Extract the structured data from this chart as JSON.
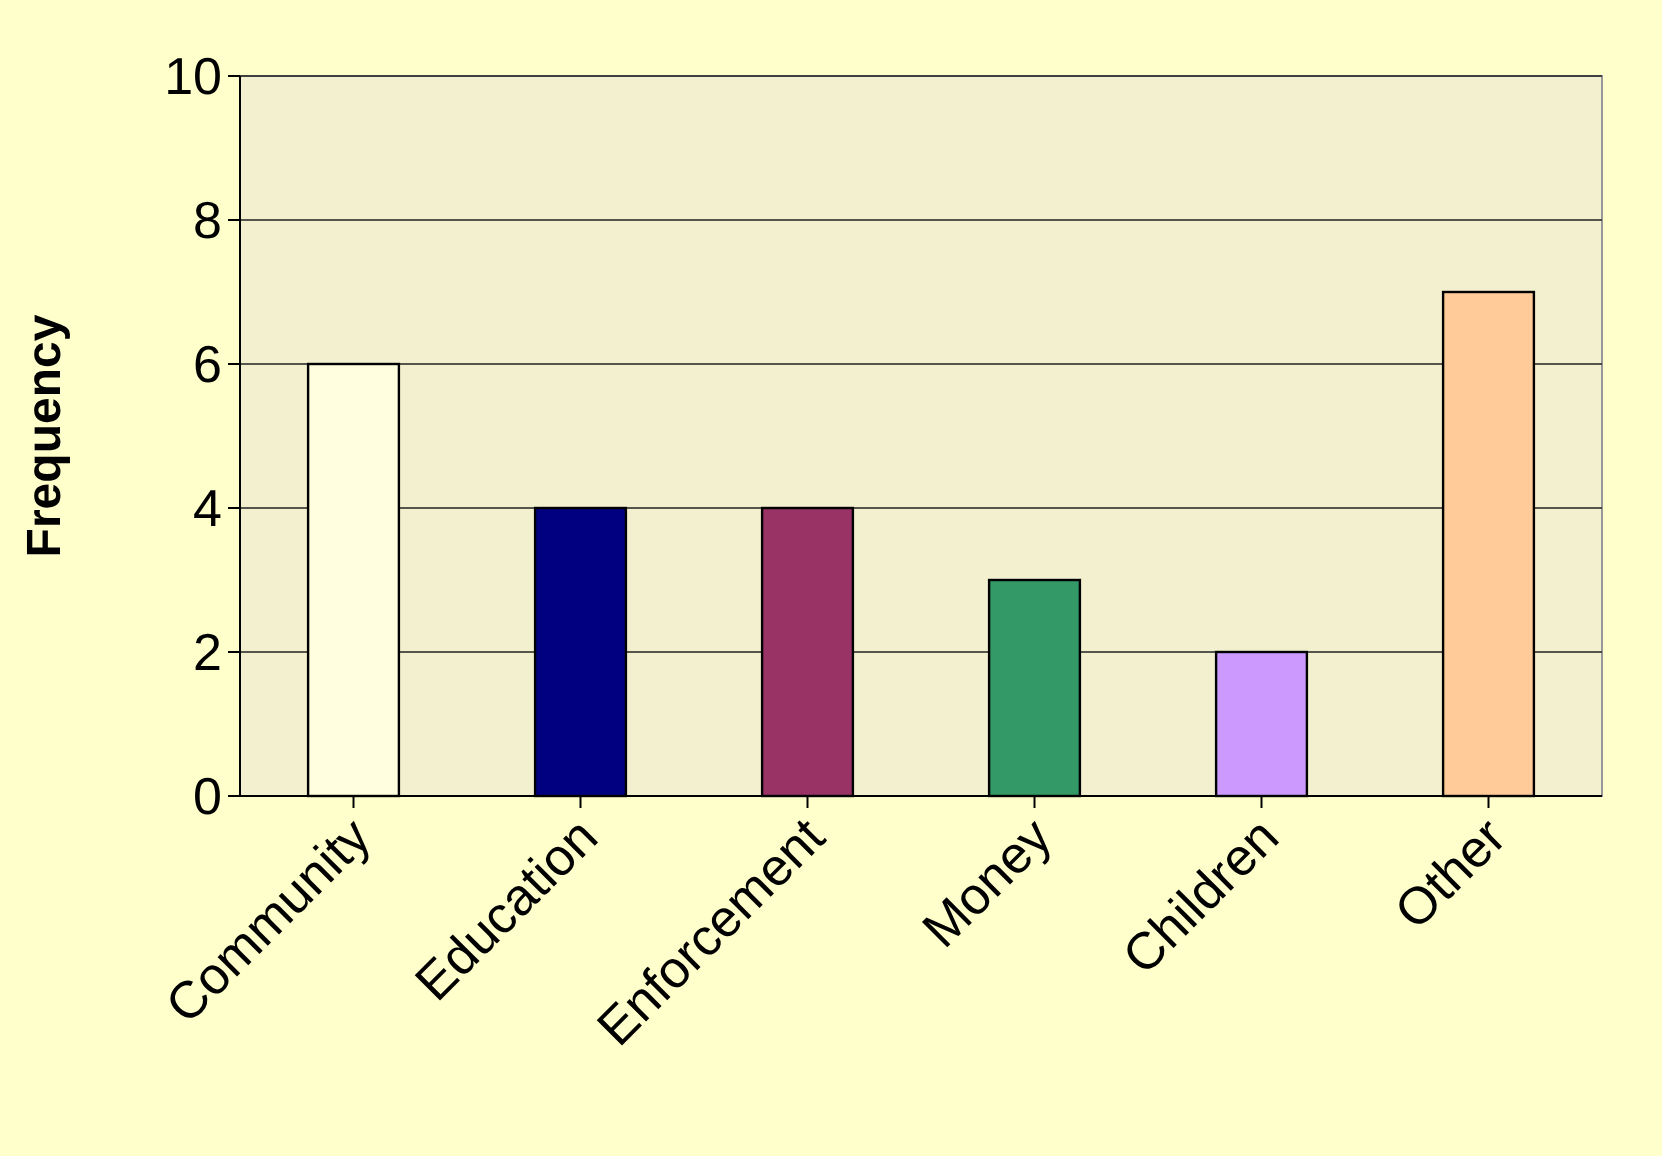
{
  "chart_data": {
    "type": "bar",
    "ylabel": "Frequency",
    "categories": [
      "Community",
      "Education",
      "Enforcement",
      "Money",
      "Children",
      "Other"
    ],
    "values": [
      6,
      4,
      4,
      3,
      2,
      7
    ],
    "colors": [
      "#ffffe0",
      "#000080",
      "#993366",
      "#339966",
      "#cc99ff",
      "#ffcc99"
    ],
    "ylim": [
      0,
      10
    ],
    "yticks": [
      0,
      2,
      4,
      6,
      8,
      10
    ],
    "grid": "y"
  }
}
